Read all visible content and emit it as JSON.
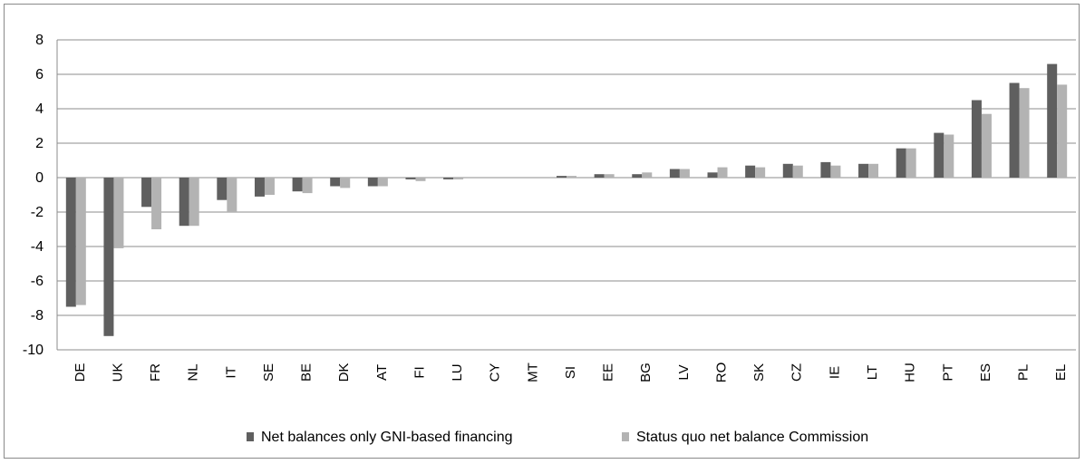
{
  "chart_data": {
    "type": "bar",
    "title": "",
    "xlabel": "",
    "ylabel": "",
    "ylim": [
      -10,
      8
    ],
    "yticks": [
      8,
      6,
      4,
      2,
      0,
      -2,
      -4,
      -6,
      -8,
      -10
    ],
    "grid": true,
    "legend_position": "bottom",
    "categories": [
      "DE",
      "UK",
      "FR",
      "NL",
      "IT",
      "SE",
      "BE",
      "DK",
      "AT",
      "FI",
      "LU",
      "CY",
      "MT",
      "SI",
      "EE",
      "BG",
      "LV",
      "RO",
      "SK",
      "CZ",
      "IE",
      "LT",
      "HU",
      "PT",
      "ES",
      "PL",
      "EL"
    ],
    "series": [
      {
        "name": "Net balances only GNI-based financing",
        "color": "#5f5f5f",
        "values": [
          -7.5,
          -9.2,
          -1.7,
          -2.8,
          -1.3,
          -1.1,
          -0.8,
          -0.5,
          -0.5,
          -0.1,
          -0.1,
          0.0,
          0.0,
          0.1,
          0.2,
          0.2,
          0.5,
          0.3,
          0.7,
          0.8,
          0.9,
          0.8,
          1.7,
          2.6,
          4.5,
          5.5,
          6.6
        ]
      },
      {
        "name": "Status quo net balance Commission",
        "color": "#b3b3b3",
        "values": [
          -7.4,
          -4.1,
          -3.0,
          -2.8,
          -2.0,
          -1.0,
          -0.9,
          -0.6,
          -0.5,
          -0.2,
          -0.1,
          0.0,
          0.0,
          0.1,
          0.2,
          0.3,
          0.5,
          0.6,
          0.6,
          0.7,
          0.7,
          0.8,
          1.7,
          2.5,
          3.7,
          5.2,
          5.4
        ]
      }
    ]
  }
}
